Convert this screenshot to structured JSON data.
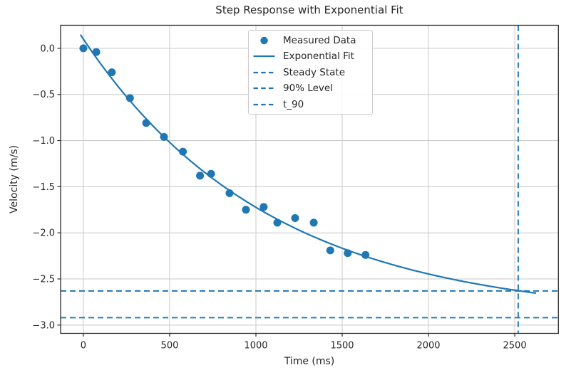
{
  "accent_color": "#1f77b4",
  "grid_color": "#c9c9c9",
  "spine_color": "#2b2b2b",
  "text_color": "#262626",
  "chart_data": {
    "type": "scatter",
    "title": "Step Response with Exponential Fit",
    "xlabel": "Time (ms)",
    "ylabel": "Velocity (m/s)",
    "xlim": [
      -132,
      2753
    ],
    "ylim": [
      -3.09,
      0.25
    ],
    "grid": true,
    "legend_position": "upper center",
    "xticks": [
      {
        "v": 0,
        "label": "0"
      },
      {
        "v": 500,
        "label": "500"
      },
      {
        "v": 1000,
        "label": "1000"
      },
      {
        "v": 1500,
        "label": "1500"
      },
      {
        "v": 2000,
        "label": "2000"
      },
      {
        "v": 2500,
        "label": "2500"
      }
    ],
    "yticks": [
      {
        "v": 0.0,
        "label": "0.0"
      },
      {
        "v": -0.5,
        "label": "−0.5"
      },
      {
        "v": -1.0,
        "label": "−1.0"
      },
      {
        "v": -1.5,
        "label": "−1.5"
      },
      {
        "v": -2.0,
        "label": "−2.0"
      },
      {
        "v": -2.5,
        "label": "−2.5"
      },
      {
        "v": -3.0,
        "label": "−3.0"
      }
    ],
    "series": [
      {
        "name": "Measured Data",
        "type": "scatter",
        "x": [
          0,
          75,
          165,
          270,
          364,
          467,
          577,
          676,
          740,
          847,
          942,
          1045,
          1124,
          1227,
          1335,
          1431,
          1532,
          1635
        ],
        "y": [
          0.0,
          -0.04,
          -0.26,
          -0.54,
          -0.81,
          -0.96,
          -1.12,
          -1.38,
          -1.36,
          -1.57,
          -1.75,
          -1.72,
          -1.89,
          -1.84,
          -1.89,
          -2.19,
          -2.22,
          -2.24
        ]
      },
      {
        "name": "Exponential Fit",
        "type": "line",
        "model": "v(t) = v_ss + (v0 - v_ss) * exp(-t / tau)",
        "v0": 0.1,
        "v_ss": -2.92,
        "tau_ms": 1080,
        "t_range": [
          -15,
          2620
        ]
      },
      {
        "name": "Steady State",
        "type": "hline",
        "y": -2.92
      },
      {
        "name": "90% Level",
        "type": "hline",
        "y": -2.63
      },
      {
        "name": "t_90",
        "type": "vline",
        "x": 2520
      }
    ],
    "legend": {
      "entries": [
        {
          "swatch": "marker",
          "label": "Measured Data"
        },
        {
          "swatch": "solid",
          "label": "Exponential Fit"
        },
        {
          "swatch": "dashed",
          "label": "Steady State"
        },
        {
          "swatch": "dashed",
          "label": "90% Level"
        },
        {
          "swatch": "dashed",
          "label": "t_90"
        }
      ]
    }
  }
}
